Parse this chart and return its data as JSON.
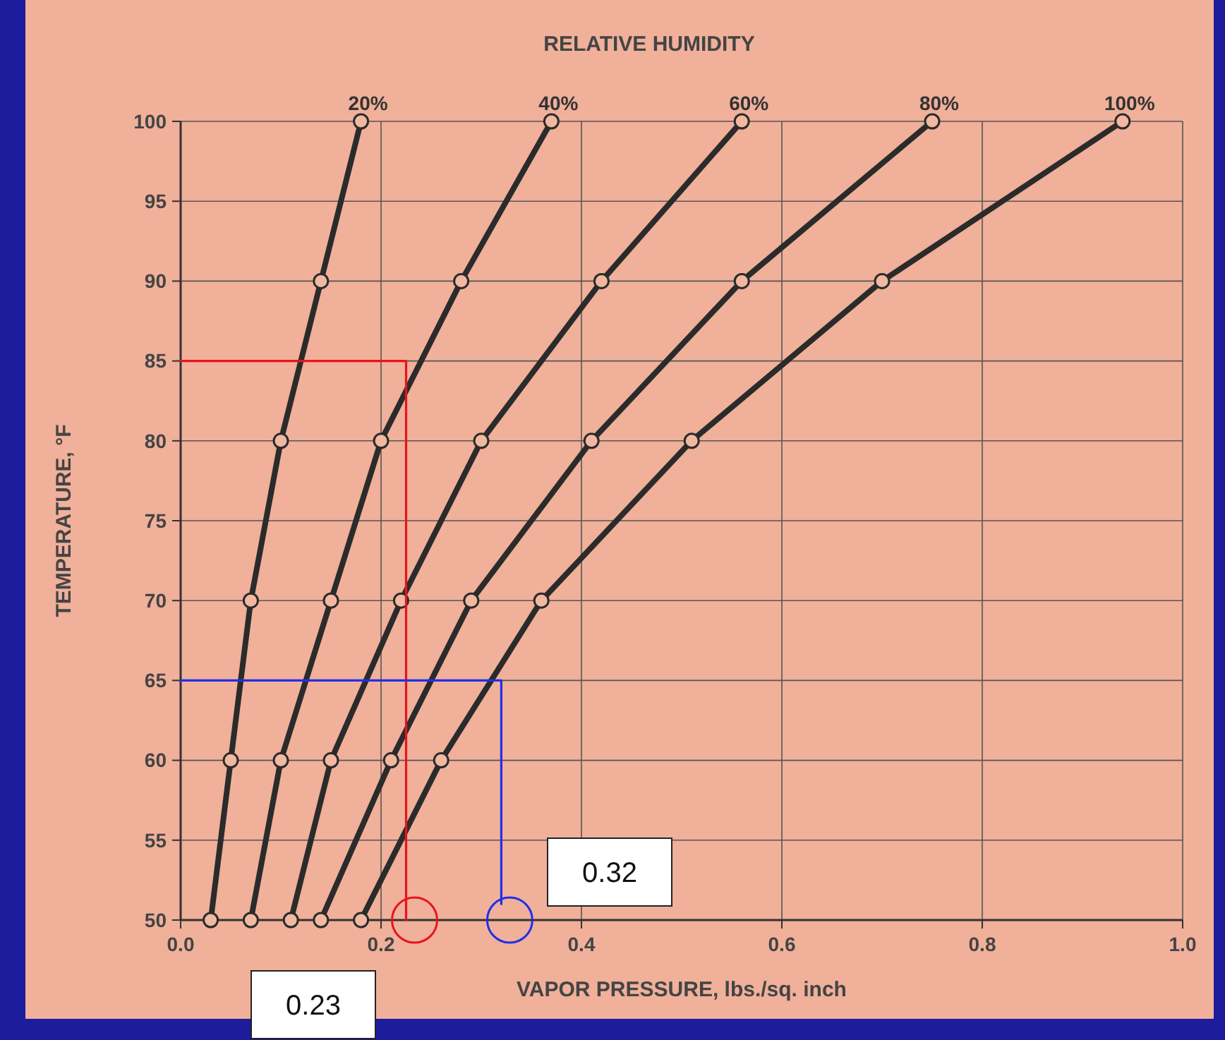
{
  "chart_data": {
    "type": "line",
    "legend_title": "RELATIVE HUMIDITY",
    "xlabel": "VAPOR PRESSURE, lbs./sq. inch",
    "ylabel": "TEMPERATURE, °F",
    "series": [
      {
        "name": "20%",
        "color": "#2b2b2b",
        "x": [
          0.03,
          0.05,
          0.07,
          0.1,
          0.14,
          0.18
        ],
        "values": [
          50,
          60,
          70,
          80,
          90,
          100
        ]
      },
      {
        "name": "40%",
        "color": "#2b2b2b",
        "x": [
          0.07,
          0.1,
          0.15,
          0.2,
          0.28,
          0.37
        ],
        "values": [
          50,
          60,
          70,
          80,
          90,
          100
        ]
      },
      {
        "name": "60%",
        "color": "#2b2b2b",
        "x": [
          0.11,
          0.15,
          0.22,
          0.3,
          0.42,
          0.56
        ],
        "values": [
          50,
          60,
          70,
          80,
          90,
          100
        ]
      },
      {
        "name": "80%",
        "color": "#2b2b2b",
        "x": [
          0.14,
          0.21,
          0.29,
          0.41,
          0.56,
          0.75
        ],
        "values": [
          50,
          60,
          70,
          80,
          90,
          100
        ]
      },
      {
        "name": "100%",
        "color": "#2b2b2b",
        "x": [
          0.18,
          0.26,
          0.36,
          0.51,
          0.7,
          0.94
        ],
        "values": [
          50,
          60,
          70,
          80,
          90,
          100
        ]
      },
      {
        "color": "#e8141c",
        "marker": "none",
        "x": [
          0,
          0.225,
          0.225
        ],
        "values": [
          85,
          85,
          50
        ]
      },
      {
        "color": "#2030e8",
        "marker": "none",
        "x": [
          0,
          0.32,
          0.32
        ],
        "values": [
          65,
          65,
          51
        ]
      }
    ],
    "annotations": [
      "0.23",
      "0.32"
    ],
    "xlim": [
      0,
      1
    ],
    "xticks": [
      {
        "value": 0,
        "label": "0.0"
      },
      {
        "value": 0.2,
        "label": "0.2"
      },
      {
        "value": 0.4,
        "label": "0.4"
      },
      {
        "value": 0.6,
        "label": "0.6"
      },
      {
        "value": 0.8,
        "label": "0.8"
      },
      {
        "value": 1,
        "label": "1.0"
      }
    ],
    "ylim": [
      50,
      100
    ],
    "yticks": [
      50,
      55,
      60,
      65,
      70,
      75,
      80,
      85,
      90,
      95,
      100
    ],
    "grid": true,
    "marker": "circle"
  }
}
